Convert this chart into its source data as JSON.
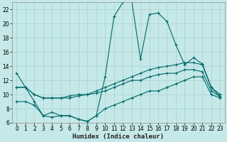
{
  "xlabel": "Humidex (Indice chaleur)",
  "bg_color": "#c5e8e8",
  "grid_color": "#afd4d4",
  "line_color": "#006868",
  "xlim": [
    -0.5,
    23.5
  ],
  "ylim": [
    6,
    23
  ],
  "xticks": [
    0,
    1,
    2,
    3,
    4,
    5,
    6,
    7,
    8,
    9,
    10,
    11,
    12,
    13,
    14,
    15,
    16,
    17,
    18,
    19,
    20,
    21,
    22,
    23
  ],
  "yticks": [
    6,
    8,
    10,
    12,
    14,
    16,
    18,
    20,
    22
  ],
  "line1_x": [
    0,
    1,
    2,
    3,
    4,
    5,
    6,
    7,
    8,
    9,
    10,
    11,
    12,
    13,
    14,
    15,
    16,
    17,
    18,
    19,
    20,
    21,
    22,
    23
  ],
  "line1_y": [
    13,
    11,
    9,
    7,
    7.5,
    7,
    7,
    6.5,
    6.2,
    7,
    12.5,
    21,
    23,
    23.3,
    15,
    21.3,
    21.5,
    20.3,
    17,
    14.2,
    15.2,
    14.3,
    11,
    9.7
  ],
  "line2_x": [
    0,
    1,
    2,
    3,
    4,
    5,
    6,
    7,
    8,
    9,
    10,
    11,
    12,
    13,
    14,
    15,
    16,
    17,
    18,
    19,
    20,
    21,
    22,
    23
  ],
  "line2_y": [
    11,
    11,
    10,
    9.5,
    9.5,
    9.5,
    9.8,
    10,
    10,
    10.5,
    11,
    11.5,
    12,
    12.5,
    13,
    13.5,
    13.8,
    14,
    14.2,
    14.5,
    14.5,
    14.2,
    11,
    10
  ],
  "line3_x": [
    0,
    1,
    2,
    3,
    4,
    5,
    6,
    7,
    8,
    9,
    10,
    11,
    12,
    13,
    14,
    15,
    16,
    17,
    18,
    19,
    20,
    21,
    22,
    23
  ],
  "line3_y": [
    11,
    11,
    10,
    9.5,
    9.5,
    9.5,
    9.5,
    9.8,
    10,
    10.2,
    10.5,
    11,
    11.5,
    12,
    12,
    12.5,
    12.8,
    13,
    13,
    13.5,
    13.5,
    13.2,
    10.5,
    9.7
  ],
  "line4_x": [
    0,
    1,
    2,
    3,
    4,
    5,
    6,
    7,
    8,
    9,
    10,
    11,
    12,
    13,
    14,
    15,
    16,
    17,
    18,
    19,
    20,
    21,
    22,
    23
  ],
  "line4_y": [
    9,
    9,
    8.5,
    7,
    6.8,
    7,
    7,
    6.5,
    6.2,
    7,
    8,
    8.5,
    9,
    9.5,
    10,
    10.5,
    10.5,
    11,
    11.5,
    12,
    12.5,
    12.5,
    10,
    9.5
  ]
}
